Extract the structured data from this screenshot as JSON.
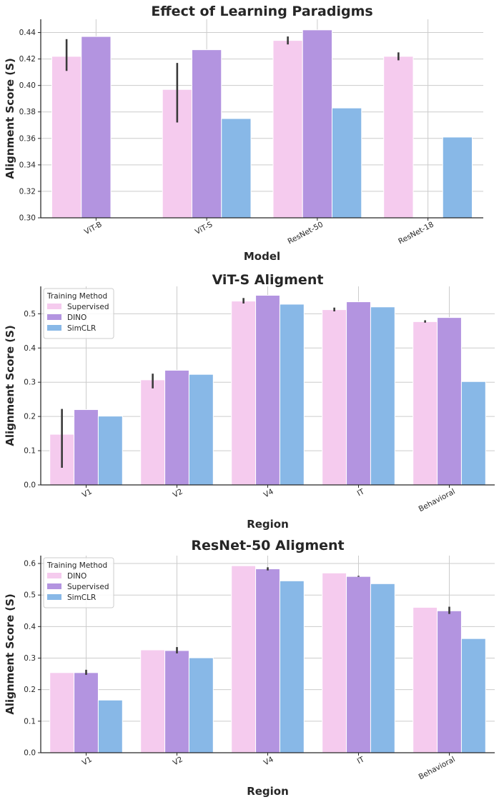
{
  "colors": {
    "pink": "#f5cbee",
    "purple": "#b394e0",
    "blue": "#88b8e7",
    "error": "#3a3a3a"
  },
  "chart_data": [
    {
      "type": "bar",
      "title": "Effect of Learning Paradigms",
      "xlabel": "Model",
      "ylabel": "Alignment Score (S)",
      "categories": [
        "ViT-B",
        "ViT-S",
        "ResNet-50",
        "ResNet-18"
      ],
      "ylim": [
        0.3,
        0.45
      ],
      "yticks": [
        "0.30",
        "0.32",
        "0.34",
        "0.36",
        "0.38",
        "0.40",
        "0.42",
        "0.44"
      ],
      "ytick_values": [
        0.3,
        0.32,
        0.34,
        0.36,
        0.38,
        0.4,
        0.42,
        0.44
      ],
      "legend": false,
      "series": [
        {
          "name": "Supervised",
          "color": "pink",
          "values": [
            0.422,
            0.397,
            0.434,
            0.422
          ],
          "err": [
            [
              0.411,
              0.435
            ],
            [
              0.372,
              0.417
            ],
            [
              0.431,
              0.437
            ],
            [
              0.419,
              0.425
            ]
          ]
        },
        {
          "name": "DINO",
          "color": "purple",
          "values": [
            0.437,
            0.427,
            0.442,
            null
          ],
          "err": [
            null,
            null,
            null,
            null
          ]
        },
        {
          "name": "SimCLR",
          "color": "blue",
          "values": [
            null,
            0.375,
            0.383,
            0.361
          ],
          "err": [
            null,
            null,
            null,
            null
          ]
        }
      ]
    },
    {
      "type": "bar",
      "title": "ViT-S Aligment",
      "xlabel": "Region",
      "ylabel": "Alignment Score (S)",
      "categories": [
        "V1",
        "V2",
        "V4",
        "IT",
        "Behavioral"
      ],
      "ylim": [
        0.0,
        0.58
      ],
      "yticks": [
        "0.0",
        "0.1",
        "0.2",
        "0.3",
        "0.4",
        "0.5"
      ],
      "ytick_values": [
        0.0,
        0.1,
        0.2,
        0.3,
        0.4,
        0.5
      ],
      "legend": true,
      "legend_title": "Training Method",
      "legend_position": "top-left",
      "series": [
        {
          "name": "Supervised",
          "color": "pink",
          "values": [
            0.148,
            0.307,
            0.537,
            0.512,
            0.477
          ],
          "err": [
            [
              0.05,
              0.222
            ],
            [
              0.282,
              0.325
            ],
            [
              0.53,
              0.546
            ],
            [
              0.507,
              0.518
            ],
            [
              0.474,
              0.481
            ]
          ]
        },
        {
          "name": "DINO",
          "color": "purple",
          "values": [
            0.22,
            0.335,
            0.554,
            0.535,
            0.489
          ],
          "err": [
            null,
            null,
            null,
            null,
            null
          ]
        },
        {
          "name": "SimCLR",
          "color": "blue",
          "values": [
            0.201,
            0.323,
            0.528,
            0.52,
            0.302
          ],
          "err": [
            null,
            null,
            null,
            null,
            null
          ]
        }
      ]
    },
    {
      "type": "bar",
      "title": "ResNet-50 Aligment",
      "xlabel": "Region",
      "ylabel": "Alignment Score (S)",
      "categories": [
        "V1",
        "V2",
        "V4",
        "IT",
        "Behavioral"
      ],
      "ylim": [
        0.0,
        0.625
      ],
      "yticks": [
        "0.0",
        "0.1",
        "0.2",
        "0.3",
        "0.4",
        "0.5",
        "0.6"
      ],
      "ytick_values": [
        0.0,
        0.1,
        0.2,
        0.3,
        0.4,
        0.5,
        0.6
      ],
      "legend": true,
      "legend_title": "Training Method",
      "legend_position": "top-left",
      "series": [
        {
          "name": "DINO",
          "color": "pink",
          "values": [
            0.254,
            0.326,
            0.593,
            0.57,
            0.461
          ],
          "err": [
            null,
            null,
            null,
            null,
            null
          ]
        },
        {
          "name": "Supervised",
          "color": "purple",
          "values": [
            0.254,
            0.324,
            0.583,
            0.559,
            0.45
          ],
          "err": [
            [
              0.247,
              0.263
            ],
            [
              0.315,
              0.335
            ],
            [
              0.578,
              0.588
            ],
            [
              0.558,
              0.561
            ],
            [
              0.44,
              0.463
            ]
          ]
        },
        {
          "name": "SimCLR",
          "color": "blue",
          "values": [
            0.167,
            0.301,
            0.545,
            0.536,
            0.362
          ],
          "err": [
            null,
            null,
            null,
            null,
            null
          ]
        }
      ]
    }
  ]
}
